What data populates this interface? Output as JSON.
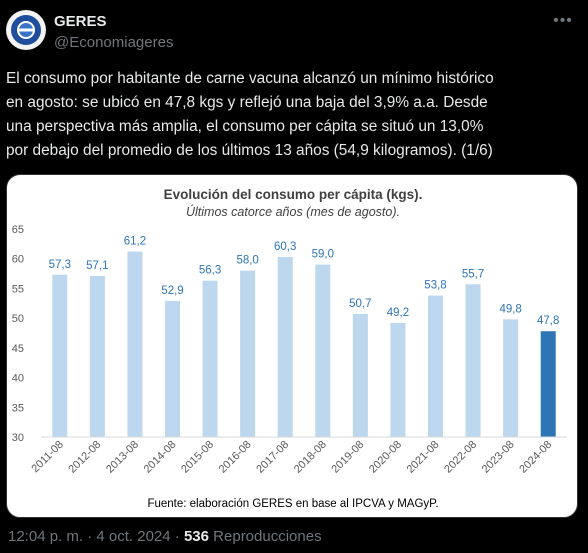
{
  "tweet": {
    "author_name": "GERES",
    "author_handle": "@Economiageres",
    "avatar_text": "GERES",
    "more_icon": "ellipsis-icon",
    "text": "El consumo por habitante de carne vacuna alcanzó un mínimo histórico\nen agosto: se ubicó en 47,8 kgs y reflejó una baja del 3,9% a.a. Desde\nuna perspectiva más amplia, el consumo per cápita se situó un 13,0%\npor debajo del promedio de los últimos 13 años (54,9 kilogramos). (1/6)",
    "time": "12:04 p. m.",
    "date": "4 oct. 2024",
    "separator": "·",
    "views_count": "536",
    "views_label": "Reproducciones"
  },
  "chart_data": {
    "type": "bar",
    "title": "Evolución del consumo per cápita (kgs).",
    "subtitle": "Últimos catorce años (mes de agosto).",
    "source": "Fuente: elaboración GERES en base al IPCVA y MAGyP.",
    "categories": [
      "2011-08",
      "2012-08",
      "2013-08",
      "2014-08",
      "2015-08",
      "2016-08",
      "2017-08",
      "2018-08",
      "2019-08",
      "2020-08",
      "2021-08",
      "2022-08",
      "2023-08",
      "2024-08"
    ],
    "values": [
      57.3,
      57.1,
      61.2,
      52.9,
      56.3,
      58.0,
      60.3,
      59.0,
      50.7,
      49.2,
      53.8,
      55.7,
      49.8,
      47.8
    ],
    "value_labels": [
      "57,3",
      "57,1",
      "61,2",
      "52,9",
      "56,3",
      "58,0",
      "60,3",
      "59,0",
      "50,7",
      "49,2",
      "53,8",
      "55,7",
      "49,8",
      "47,8"
    ],
    "ylim": [
      30,
      65
    ],
    "yticks": [
      30,
      35,
      40,
      45,
      50,
      55,
      60,
      65
    ],
    "grid": false,
    "colors": {
      "bar": "#bdd7ee",
      "highlight_bar": "#2e75b6",
      "label": "#2e75b6",
      "text": "#404040"
    },
    "highlight_index": 13
  }
}
